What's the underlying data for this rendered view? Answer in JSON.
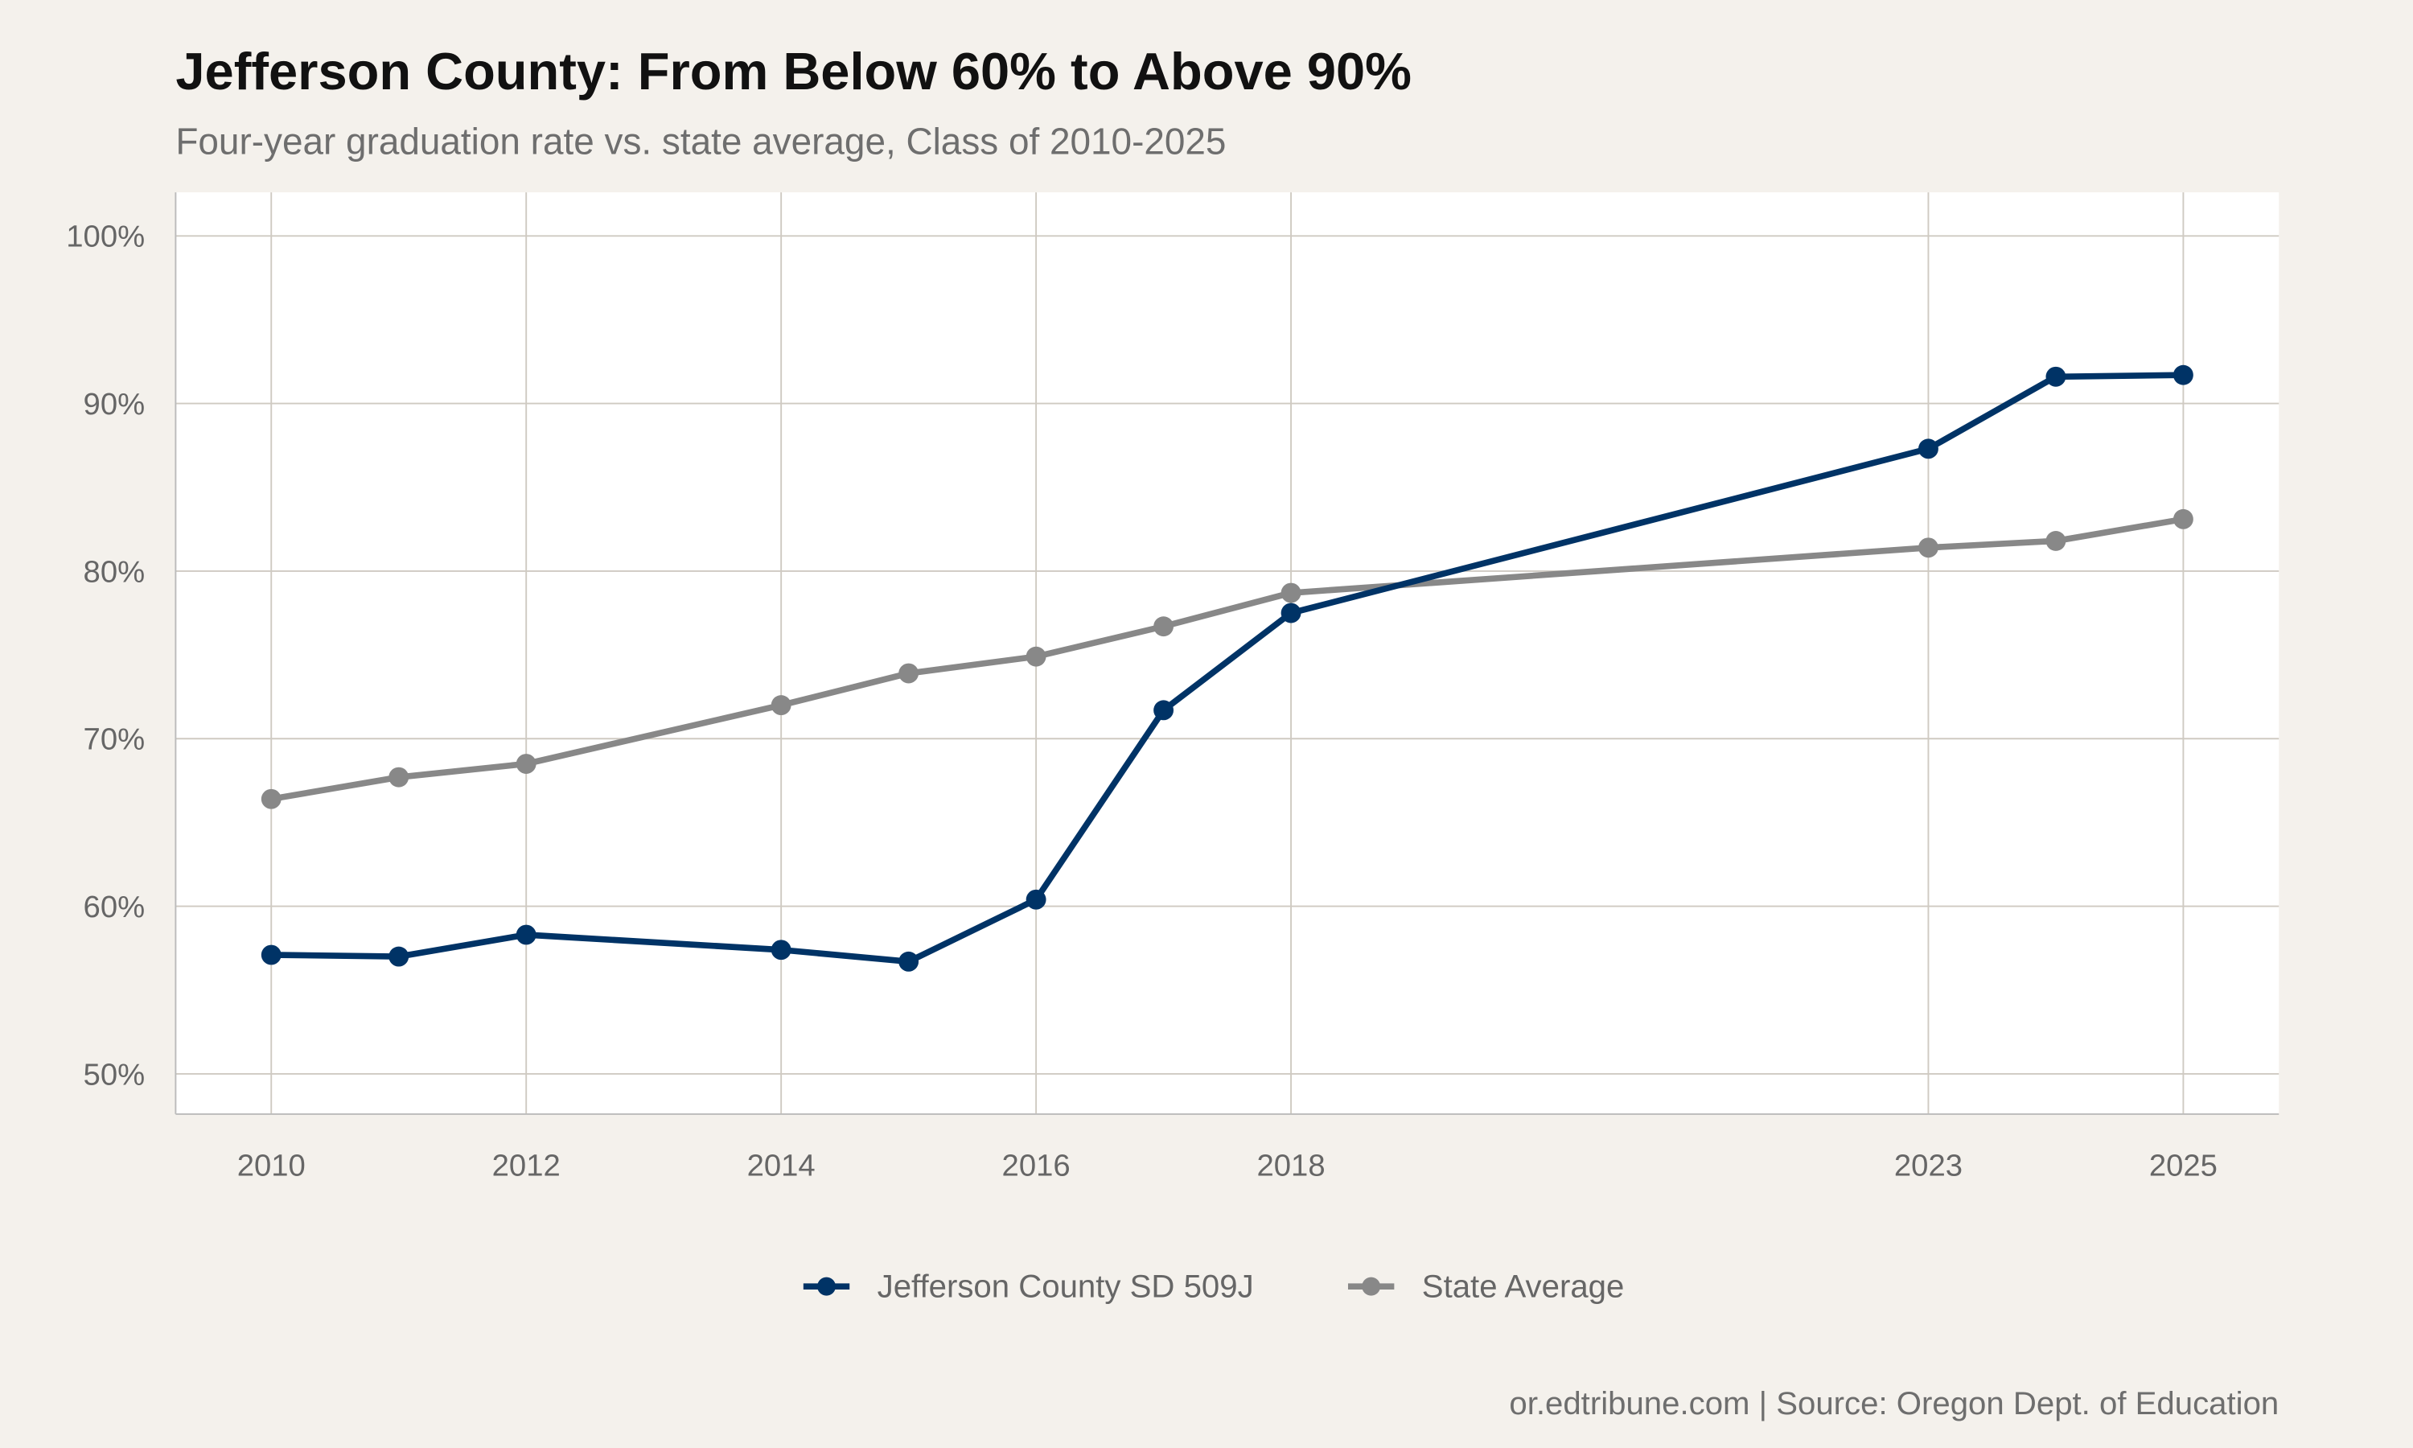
{
  "chart_data": {
    "type": "line",
    "title": "Jefferson County: From Below 60% to Above 90%",
    "subtitle": "Four-year graduation rate vs. state average, Class of 2010-2025",
    "caption": "or.edtribune.com | Source: Oregon Dept. of Education",
    "xlabel": "",
    "ylabel": "",
    "x": [
      2010,
      2011,
      2012,
      2014,
      2015,
      2016,
      2017,
      2018,
      2023,
      2024,
      2025
    ],
    "x_ticks": [
      "2010",
      "2012",
      "2014",
      "2016",
      "2018",
      "2023",
      "2025"
    ],
    "y_ticks": [
      "50%",
      "60%",
      "70%",
      "80%",
      "90%",
      "100%"
    ],
    "ylim": [
      47.6,
      102.6
    ],
    "xlim": [
      2009.25,
      2025.75
    ],
    "grid": true,
    "legend_position": "bottom",
    "series": [
      {
        "name": "Jefferson County SD 509J",
        "color": "#003366",
        "values": [
          57.1,
          57.0,
          58.3,
          57.4,
          56.7,
          60.4,
          71.7,
          77.5,
          87.3,
          91.6,
          91.7
        ]
      },
      {
        "name": "State Average",
        "color": "#888888",
        "values": [
          66.4,
          67.7,
          68.5,
          72.0,
          73.9,
          74.9,
          76.7,
          78.7,
          81.4,
          81.8,
          83.1
        ]
      }
    ]
  }
}
